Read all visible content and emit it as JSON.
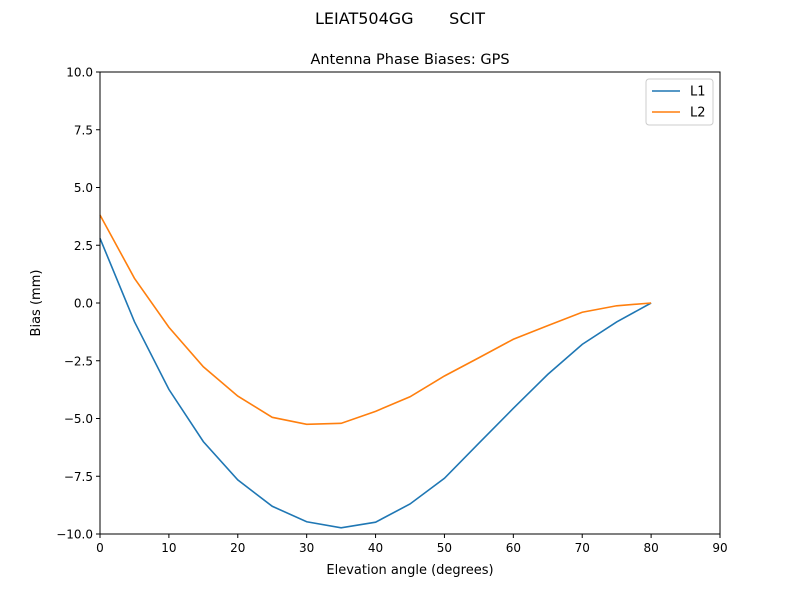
{
  "chart_data": {
    "type": "line",
    "suptitle": "LEIAT504GG       SCIT",
    "title": "Antenna Phase Biases: GPS",
    "xlabel": "Elevation angle (degrees)",
    "ylabel": "Bias (mm)",
    "xlim": [
      0,
      90
    ],
    "ylim": [
      -10,
      10
    ],
    "xticks": [
      0,
      10,
      20,
      30,
      40,
      50,
      60,
      70,
      80,
      90
    ],
    "yticks": [
      -10.0,
      -7.5,
      -5.0,
      -2.5,
      0.0,
      2.5,
      5.0,
      7.5,
      10.0
    ],
    "xtick_labels": [
      "0",
      "10",
      "20",
      "30",
      "40",
      "50",
      "60",
      "70",
      "80",
      "90"
    ],
    "ytick_labels": [
      "−10.0",
      "−7.5",
      "−5.0",
      "−2.5",
      "0.0",
      "2.5",
      "5.0",
      "7.5",
      "10.0"
    ],
    "grid": false,
    "legend_position": "top-right",
    "x": [
      0,
      5,
      10,
      15,
      20,
      25,
      30,
      35,
      40,
      45,
      50,
      55,
      60,
      65,
      70,
      75,
      80
    ],
    "series": [
      {
        "name": "L1",
        "color": "#1f77b4",
        "values": [
          2.8,
          -0.81,
          -3.74,
          -6.0,
          -7.66,
          -8.8,
          -9.47,
          -9.73,
          -9.49,
          -8.7,
          -7.59,
          -6.07,
          -4.56,
          -3.09,
          -1.79,
          -0.82,
          0.0
        ]
      },
      {
        "name": "L2",
        "color": "#ff7f0e",
        "values": [
          3.81,
          1.07,
          -1.05,
          -2.76,
          -4.03,
          -4.95,
          -5.25,
          -5.21,
          -4.69,
          -4.06,
          -3.16,
          -2.37,
          -1.57,
          -0.98,
          -0.4,
          -0.12,
          0.0
        ]
      }
    ]
  }
}
